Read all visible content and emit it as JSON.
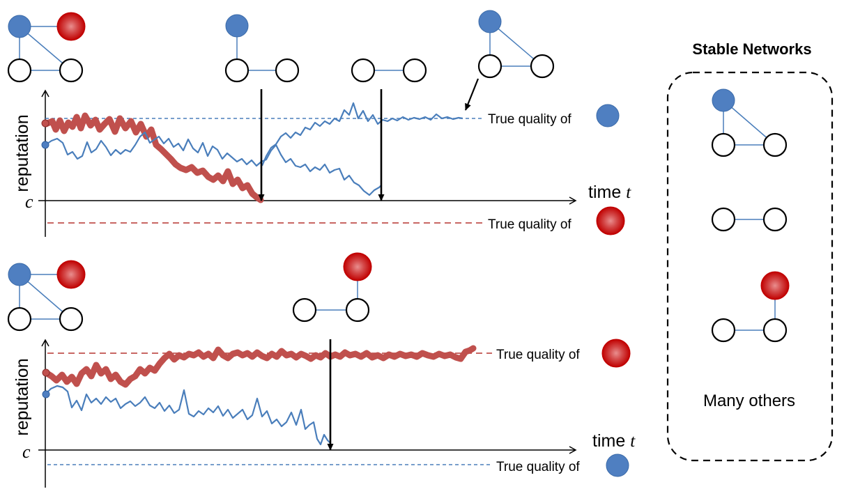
{
  "top_panel": {
    "y_axis_label": "reputation",
    "x_axis_label": "time",
    "x_axis_symbol": "t",
    "threshold_label": "c",
    "quality_high_label": "True quality of",
    "quality_low_label": "True quality of"
  },
  "bottom_panel": {
    "y_axis_label": "reputation",
    "x_axis_label": "time",
    "x_axis_symbol": "t",
    "threshold_label": "c",
    "quality_high_label": "True quality of",
    "quality_low_label": "True quality of"
  },
  "stable_box": {
    "title": "Stable Networks",
    "many_others": "Many others"
  },
  "colors": {
    "blue_node": "#4f7fc1",
    "red_node": "#c00000",
    "red_curve": "#c0504d",
    "blue_curve": "#4a7ebb"
  }
}
